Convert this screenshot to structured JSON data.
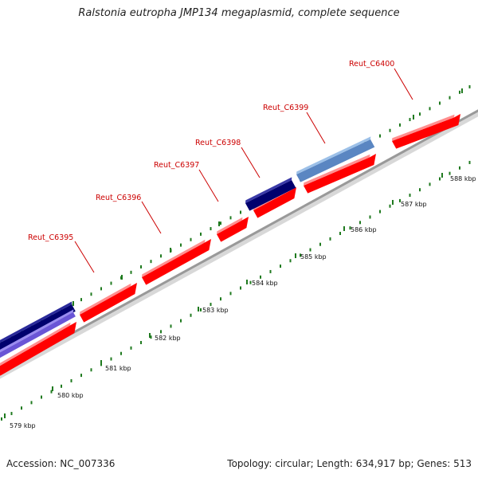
{
  "title": "Ralstonia eutropha JMP134 megaplasmid, complete sequence",
  "footer": {
    "accession": "Accession: NC_007336",
    "stats": "Topology: circular; Length: 634,917 bp; Genes: 513"
  },
  "colors": {
    "forward_cds": "#ff0000",
    "forward_cds_top": "#ff8f8f",
    "reverse_cds_dark": "#00006e",
    "reverse_cds_light": "#5a86c2",
    "reverse_cds_purple": "#6a55d6",
    "backbone": "#999999",
    "tick": "#1f7a1f",
    "label": "#cc0000"
  },
  "scale": {
    "unit": "kbp",
    "labels": [
      "579 kbp",
      "580 kbp",
      "581 kbp",
      "582 kbp",
      "583 kbp",
      "584 kbp",
      "585 kbp",
      "586 kbp",
      "587 kbp",
      "588 kbp"
    ]
  },
  "gene_labels": [
    "Reut_C6395",
    "Reut_C6396",
    "Reut_C6397",
    "Reut_C6398",
    "Reut_C6399",
    "Reut_C6400"
  ]
}
